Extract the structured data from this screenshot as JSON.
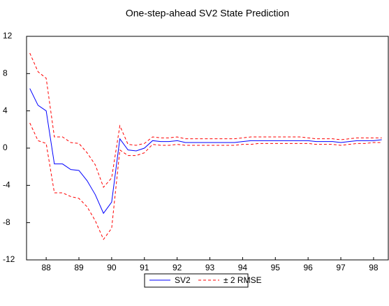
{
  "chart_data": {
    "type": "line",
    "title": "One-step-ahead SV2 State Prediction",
    "x": [
      88,
      88.25,
      88.5,
      88.75,
      89,
      89.25,
      89.5,
      89.75,
      90,
      90.25,
      90.5,
      90.75,
      91,
      91.25,
      91.5,
      91.75,
      92,
      92.25,
      92.5,
      92.75,
      93,
      93.25,
      93.5,
      93.75,
      94,
      94.25,
      94.5,
      94.75,
      95,
      95.25,
      95.5,
      95.75,
      96,
      96.25,
      96.5,
      96.75,
      97,
      97.25,
      97.5,
      97.75,
      98,
      98.25,
      98.5,
      98.75
    ],
    "series": [
      {
        "name": "SV2",
        "color": "#0000ff",
        "values": [
          6.4,
          4.6,
          4.0,
          -1.7,
          -1.7,
          -2.3,
          -2.4,
          -3.5,
          -5.0,
          -7.0,
          -5.8,
          1.0,
          -0.2,
          -0.3,
          0.0,
          0.8,
          0.7,
          0.7,
          0.8,
          0.6,
          0.6,
          0.6,
          0.6,
          0.6,
          0.6,
          0.6,
          0.7,
          0.8,
          0.8,
          0.8,
          0.8,
          0.8,
          0.8,
          0.8,
          0.8,
          0.7,
          0.7,
          0.7,
          0.6,
          0.7,
          0.8,
          0.8,
          0.8,
          0.9
        ]
      },
      {
        "name": "± 2 RMSE",
        "color": "#ff0000",
        "values": [
          10.2,
          8.2,
          7.5,
          1.2,
          1.2,
          0.6,
          0.5,
          -0.5,
          -1.8,
          -4.2,
          -3.2,
          2.4,
          0.4,
          0.3,
          0.5,
          1.2,
          1.1,
          1.1,
          1.2,
          1.0,
          1.0,
          1.0,
          1.0,
          1.0,
          1.0,
          1.0,
          1.1,
          1.2,
          1.2,
          1.2,
          1.2,
          1.2,
          1.2,
          1.2,
          1.1,
          1.0,
          1.0,
          1.0,
          0.9,
          1.0,
          1.1,
          1.1,
          1.1,
          1.1
        ],
        "lower": [
          2.7,
          0.8,
          0.5,
          -4.8,
          -4.8,
          -5.2,
          -5.4,
          -6.3,
          -7.8,
          -9.8,
          -8.6,
          -0.2,
          -0.8,
          -0.8,
          -0.5,
          0.4,
          0.3,
          0.3,
          0.4,
          0.3,
          0.3,
          0.3,
          0.3,
          0.3,
          0.3,
          0.3,
          0.4,
          0.4,
          0.5,
          0.5,
          0.5,
          0.5,
          0.5,
          0.5,
          0.5,
          0.4,
          0.4,
          0.4,
          0.3,
          0.4,
          0.5,
          0.5,
          0.6,
          0.6
        ]
      }
    ],
    "xlim": [
      87.9,
      98.95
    ],
    "xticks": [
      {
        "value": 88.5,
        "label": "88"
      },
      {
        "value": 89.5,
        "label": "89"
      },
      {
        "value": 90.5,
        "label": "90"
      },
      {
        "value": 91.5,
        "label": "91"
      },
      {
        "value": 92.5,
        "label": "92"
      },
      {
        "value": 93.5,
        "label": "93"
      },
      {
        "value": 94.5,
        "label": "94"
      },
      {
        "value": 95.5,
        "label": "95"
      },
      {
        "value": 96.5,
        "label": "96"
      },
      {
        "value": 97.5,
        "label": "97"
      },
      {
        "value": 98.5,
        "label": "98"
      }
    ],
    "ylim": [
      -12,
      12
    ],
    "yticks": [
      -12,
      -8,
      -4,
      0,
      4,
      8,
      12
    ]
  }
}
